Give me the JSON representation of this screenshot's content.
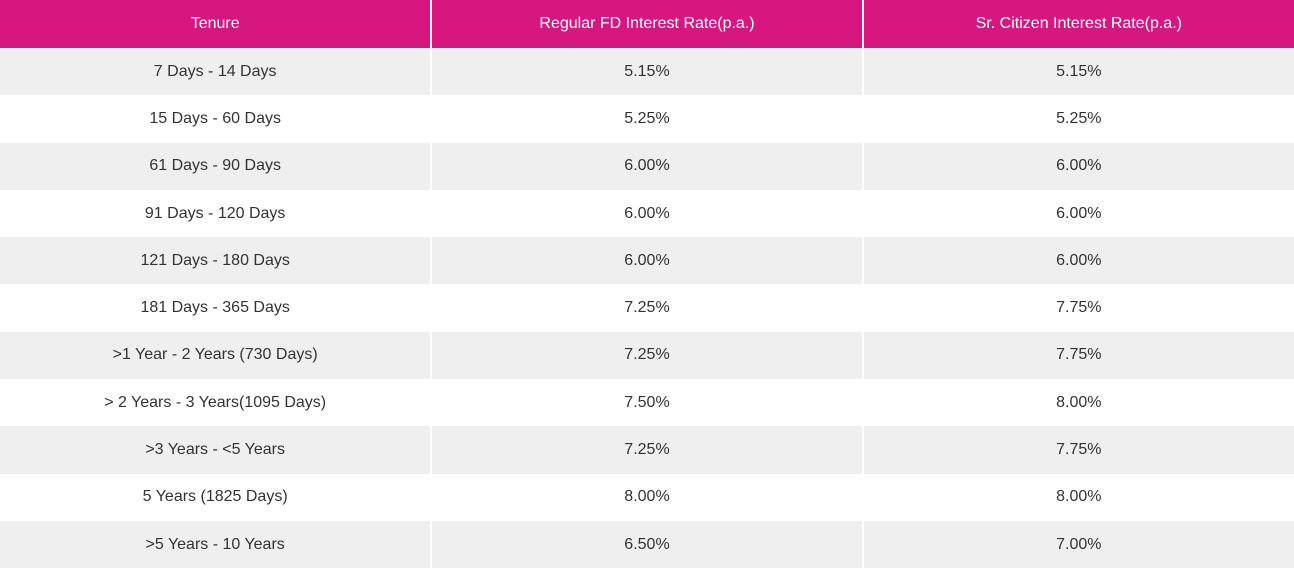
{
  "table": {
    "header": [
      "Tenure",
      "Regular FD Interest Rate(p.a.)",
      "Sr. Citizen Interest Rate(p.a.)"
    ],
    "rows": [
      [
        "7 Days - 14 Days",
        "5.15%",
        "5.15%"
      ],
      [
        "15 Days - 60 Days",
        "5.25%",
        "5.25%"
      ],
      [
        "61 Days - 90 Days",
        "6.00%",
        "6.00%"
      ],
      [
        "91 Days - 120 Days",
        "6.00%",
        "6.00%"
      ],
      [
        "121 Days - 180 Days",
        "6.00%",
        "6.00%"
      ],
      [
        "181 Days - 365 Days",
        "7.25%",
        "7.75%"
      ],
      [
        ">1 Year - 2 Years (730 Days)",
        "7.25%",
        "7.75%"
      ],
      [
        "> 2 Years - 3 Years(1095 Days)",
        "7.50%",
        "8.00%"
      ],
      [
        ">3 Years - <5 Years",
        "7.25%",
        "7.75%"
      ],
      [
        "5 Years (1825 Days)",
        "8.00%",
        "8.00%"
      ],
      [
        ">5 Years - 10 Years",
        "6.50%",
        "7.00%"
      ]
    ]
  }
}
